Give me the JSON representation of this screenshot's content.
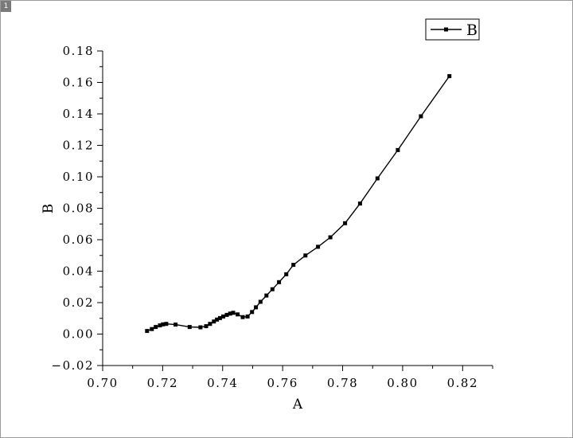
{
  "page": {
    "badge": "1"
  },
  "chart_data": {
    "type": "line",
    "xlabel": "A",
    "ylabel": "B",
    "xlim": [
      0.7,
      0.83
    ],
    "ylim": [
      -0.02,
      0.18
    ],
    "x_ticks": [
      0.7,
      0.72,
      0.74,
      0.76,
      0.78,
      0.8,
      0.82
    ],
    "x_tick_labels": [
      "0.70",
      "0.72",
      "0.74",
      "0.76",
      "0.78",
      "0.80",
      "0.82"
    ],
    "y_ticks": [
      -0.02,
      0.0,
      0.02,
      0.04,
      0.06,
      0.08,
      0.1,
      0.12,
      0.14,
      0.16,
      0.18
    ],
    "y_tick_labels": [
      "−0.02",
      "0.00",
      "0.02",
      "0.04",
      "0.06",
      "0.08",
      "0.10",
      "0.12",
      "0.14",
      "0.16",
      "0.18"
    ],
    "grid": false,
    "legend": {
      "placement": "top-right",
      "entries": [
        "B"
      ]
    },
    "series": [
      {
        "name": "B",
        "color": "#000000",
        "marker": "square",
        "x": [
          0.7148,
          0.7164,
          0.7177,
          0.7191,
          0.7201,
          0.7212,
          0.7243,
          0.729,
          0.7326,
          0.7345,
          0.7358,
          0.7371,
          0.7381,
          0.7391,
          0.7402,
          0.7414,
          0.7425,
          0.7435,
          0.745,
          0.7467,
          0.7483,
          0.7498,
          0.7511,
          0.7526,
          0.7546,
          0.7566,
          0.7588,
          0.7612,
          0.7636,
          0.7676,
          0.7718,
          0.7759,
          0.7808,
          0.7858,
          0.7916,
          0.7984,
          0.8061,
          0.8156
        ],
        "y": [
          0.002,
          0.0032,
          0.0045,
          0.0055,
          0.0062,
          0.0065,
          0.006,
          0.0045,
          0.0043,
          0.005,
          0.0065,
          0.008,
          0.0092,
          0.0102,
          0.0112,
          0.0122,
          0.013,
          0.0135,
          0.0125,
          0.0108,
          0.0112,
          0.014,
          0.017,
          0.0205,
          0.0245,
          0.0285,
          0.033,
          0.038,
          0.044,
          0.05,
          0.0555,
          0.0615,
          0.0705,
          0.083,
          0.099,
          0.117,
          0.1385,
          0.164
        ]
      }
    ]
  }
}
